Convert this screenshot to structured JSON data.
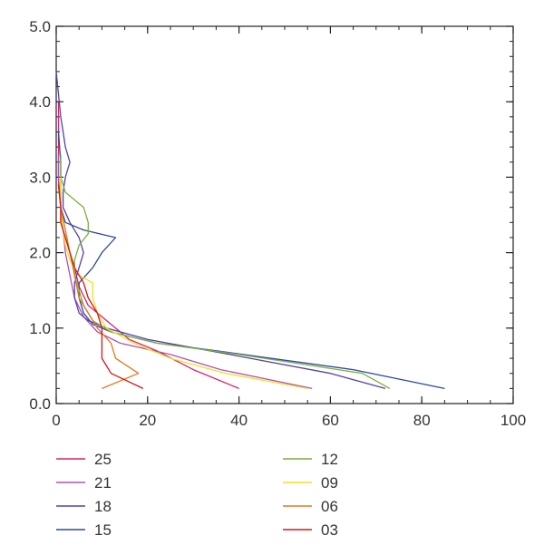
{
  "chart_data": {
    "type": "line",
    "xlim": [
      0,
      100
    ],
    "ylim": [
      0,
      5
    ],
    "x_ticks": [
      "0",
      "20",
      "40",
      "60",
      "80",
      "100"
    ],
    "y_ticks": [
      "0.0",
      "1.0",
      "2.0",
      "3.0",
      "4.0",
      "5.0"
    ],
    "grid": false,
    "legend_position": "bottom",
    "series": [
      {
        "name": "25",
        "color": "#d6246e",
        "points": [
          [
            40,
            0.2
          ],
          [
            30,
            0.45
          ],
          [
            22,
            0.7
          ],
          [
            16,
            0.85
          ],
          [
            13,
            1.0
          ],
          [
            10,
            1.15
          ],
          [
            7,
            1.3
          ],
          [
            5,
            1.55
          ],
          [
            4,
            1.8
          ],
          [
            3,
            2.0
          ],
          [
            2,
            2.2
          ],
          [
            1,
            2.4
          ],
          [
            1,
            2.6
          ],
          [
            0.5,
            2.9
          ],
          [
            0.5,
            3.2
          ],
          [
            0.5,
            3.5
          ],
          [
            0.5,
            3.8
          ],
          [
            0.5,
            4.0
          ]
        ]
      },
      {
        "name": "21",
        "color": "#b050b0",
        "points": [
          [
            56,
            0.2
          ],
          [
            36,
            0.45
          ],
          [
            25,
            0.65
          ],
          [
            14,
            0.8
          ],
          [
            9,
            0.95
          ],
          [
            6,
            1.15
          ],
          [
            4,
            1.4
          ],
          [
            3,
            1.7
          ],
          [
            2,
            2.0
          ],
          [
            1.5,
            2.3
          ],
          [
            1,
            2.6
          ],
          [
            0.5,
            3.0
          ],
          [
            0.5,
            3.3
          ]
        ]
      },
      {
        "name": "18",
        "color": "#5a3fa6",
        "points": [
          [
            72,
            0.2
          ],
          [
            60,
            0.4
          ],
          [
            38,
            0.65
          ],
          [
            20,
            0.85
          ],
          [
            11,
            1.0
          ],
          [
            7,
            1.1
          ],
          [
            5,
            1.2
          ],
          [
            4,
            1.4
          ],
          [
            4,
            1.6
          ],
          [
            5,
            1.8
          ],
          [
            6,
            2.0
          ],
          [
            5,
            2.2
          ],
          [
            3,
            2.4
          ],
          [
            1.5,
            2.6
          ],
          [
            1.5,
            2.8
          ],
          [
            2,
            3.0
          ],
          [
            3,
            3.2
          ],
          [
            2,
            3.4
          ],
          [
            1.5,
            3.6
          ],
          [
            1,
            3.8
          ],
          [
            0.5,
            4.1
          ],
          [
            0,
            4.4
          ]
        ]
      },
      {
        "name": "15",
        "color": "#2c4a9c",
        "points": [
          [
            85,
            0.2
          ],
          [
            65,
            0.45
          ],
          [
            35,
            0.7
          ],
          [
            22,
            0.8
          ],
          [
            12,
            0.95
          ],
          [
            8,
            1.05
          ],
          [
            6,
            1.2
          ],
          [
            5,
            1.4
          ],
          [
            5,
            1.6
          ],
          [
            8,
            1.8
          ],
          [
            10,
            2.0
          ],
          [
            13,
            2.2
          ],
          [
            6,
            2.3
          ],
          [
            2,
            2.4
          ],
          [
            1,
            2.6
          ],
          [
            1,
            2.9
          ],
          [
            1,
            3.2
          ],
          [
            0.5,
            3.6
          ]
        ]
      },
      {
        "name": "12",
        "color": "#7ab040",
        "points": [
          [
            73,
            0.2
          ],
          [
            67,
            0.4
          ],
          [
            40,
            0.65
          ],
          [
            22,
            0.8
          ],
          [
            12,
            0.95
          ],
          [
            8,
            1.1
          ],
          [
            6,
            1.3
          ],
          [
            5,
            1.5
          ],
          [
            4,
            1.7
          ],
          [
            4,
            1.9
          ],
          [
            5,
            2.1
          ],
          [
            7,
            2.25
          ],
          [
            7,
            2.4
          ],
          [
            6,
            2.6
          ],
          [
            2,
            2.8
          ],
          [
            1,
            3.0
          ],
          [
            1,
            3.3
          ]
        ]
      },
      {
        "name": "09",
        "color": "#f0e020",
        "points": [
          [
            55,
            0.2
          ],
          [
            37,
            0.4
          ],
          [
            25,
            0.6
          ],
          [
            17,
            0.8
          ],
          [
            11,
            1.0
          ],
          [
            9,
            1.2
          ],
          [
            8,
            1.4
          ],
          [
            8,
            1.6
          ],
          [
            5,
            1.7
          ],
          [
            3,
            1.9
          ],
          [
            2,
            2.1
          ],
          [
            1.5,
            2.3
          ],
          [
            1,
            2.6
          ],
          [
            1,
            3.0
          ]
        ]
      },
      {
        "name": "06",
        "color": "#e07820",
        "points": [
          [
            10,
            0.2
          ],
          [
            18,
            0.4
          ],
          [
            13,
            0.6
          ],
          [
            12,
            0.8
          ],
          [
            9,
            1.0
          ],
          [
            7,
            1.2
          ],
          [
            5,
            1.4
          ],
          [
            4,
            1.7
          ],
          [
            3,
            2.0
          ],
          [
            2,
            2.3
          ],
          [
            1,
            2.6
          ],
          [
            0.5,
            2.9
          ]
        ]
      },
      {
        "name": "03",
        "color": "#d01818",
        "points": [
          [
            19,
            0.2
          ],
          [
            12,
            0.4
          ],
          [
            10,
            0.6
          ],
          [
            10,
            0.8
          ],
          [
            10,
            1.0
          ],
          [
            9,
            1.2
          ],
          [
            7,
            1.4
          ],
          [
            6,
            1.6
          ],
          [
            4,
            1.8
          ],
          [
            3,
            2.0
          ],
          [
            2,
            2.2
          ],
          [
            1,
            2.4
          ],
          [
            1,
            2.6
          ],
          [
            0.5,
            2.9
          ]
        ]
      }
    ]
  }
}
